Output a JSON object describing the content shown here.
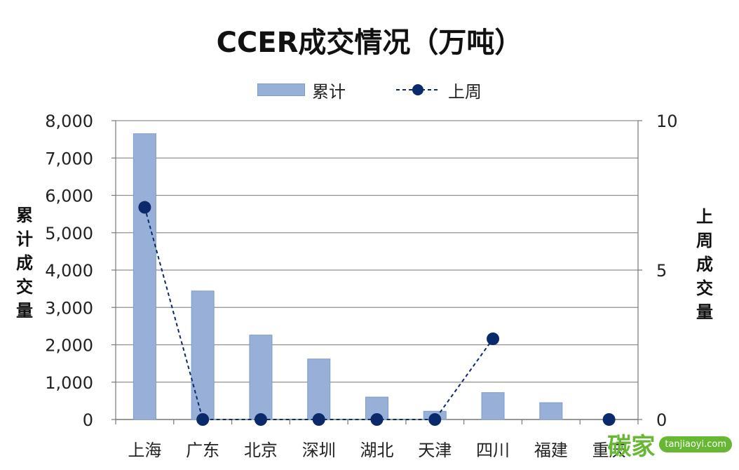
{
  "chart_data": {
    "type": "bar",
    "title": "CCER成交情况（万吨）",
    "categories": [
      "上海",
      "广东",
      "北京",
      "深圳",
      "湖北",
      "天津",
      "四川",
      "福建",
      "重庆"
    ],
    "series": [
      {
        "name": "累计",
        "type": "bar",
        "axis": "left",
        "values": [
          7650,
          3440,
          2260,
          1620,
          600,
          220,
          720,
          450,
          0
        ],
        "color": "#98b0d8"
      },
      {
        "name": "上周",
        "type": "line",
        "axis": "right",
        "style": "dashed",
        "values": [
          7.1,
          0,
          0,
          0,
          0,
          0,
          2.7,
          null,
          0
        ],
        "color": "#0b2a6b"
      }
    ],
    "left_axis": {
      "label": "累计成交量",
      "ylim": [
        0,
        8000
      ],
      "ticks": [
        "0",
        "1,000",
        "2,000",
        "3,000",
        "4,000",
        "5,000",
        "6,000",
        "7,000",
        "8,000"
      ]
    },
    "right_axis": {
      "label": "上周成交量",
      "ylim": [
        0,
        10
      ],
      "ticks": [
        "0",
        "5",
        "10"
      ]
    },
    "grid": true,
    "legend_position": "top"
  },
  "watermark": {
    "text": "碳家",
    "badge": "tanjiaoyi.com"
  }
}
